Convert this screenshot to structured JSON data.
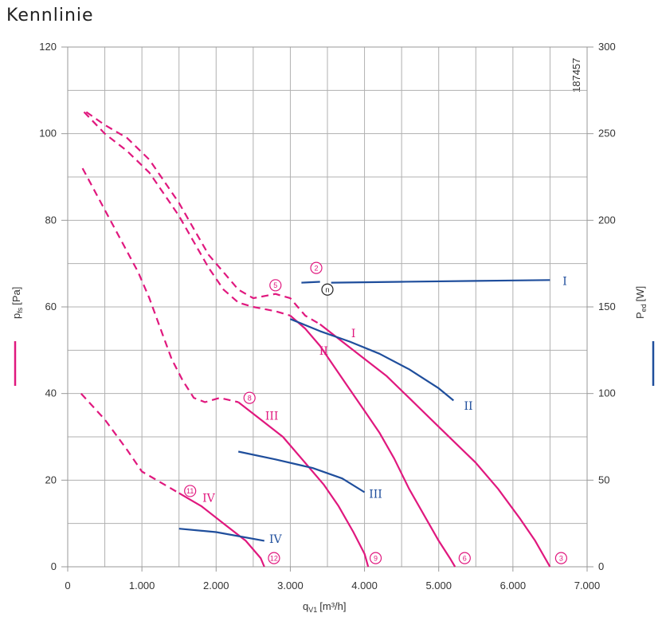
{
  "chart_data": {
    "type": "line",
    "title": "Kennlinie",
    "code": "187457",
    "x_axis": {
      "label_main": "q",
      "label_sub": "V1",
      "label_unit": "[m³/h]",
      "ticks": [
        "0",
        "1.000",
        "2.000",
        "3.000",
        "4.000",
        "5.000",
        "6.000",
        "7.000"
      ],
      "range": [
        0,
        7000
      ]
    },
    "y_left": {
      "label_main": "p",
      "label_sub": "fs",
      "label_unit": "[Pa]",
      "ticks": [
        "0",
        "20",
        "40",
        "60",
        "80",
        "100",
        "120"
      ],
      "range": [
        0,
        120
      ],
      "color": "#e0187e"
    },
    "y_right": {
      "label_main": "P",
      "label_sub": "ed",
      "label_unit": "[W]",
      "ticks": [
        "0",
        "50",
        "100",
        "150",
        "200",
        "250",
        "300"
      ],
      "range": [
        0,
        300
      ],
      "color": "#1f4e9c"
    },
    "grid": true,
    "colors": {
      "pressure": "#e0187e",
      "power": "#1f4e9c",
      "grid": "#b0b0b0"
    },
    "pressure_series": [
      {
        "name": "I",
        "dashed": [
          [
            250,
            105
          ],
          [
            500,
            102
          ],
          [
            800,
            99
          ],
          [
            1100,
            94
          ],
          [
            1300,
            89
          ],
          [
            1500,
            84
          ],
          [
            1700,
            78
          ],
          [
            1900,
            72
          ],
          [
            2100,
            68
          ],
          [
            2300,
            64
          ],
          [
            2500,
            62
          ],
          [
            2800,
            63
          ],
          [
            3000,
            62
          ],
          [
            3200,
            58
          ],
          [
            3400,
            56
          ]
        ],
        "solid": [
          [
            3400,
            56
          ],
          [
            3700,
            52
          ],
          [
            4000,
            48
          ],
          [
            4300,
            44
          ],
          [
            4600,
            39
          ],
          [
            4900,
            34
          ],
          [
            5200,
            29
          ],
          [
            5500,
            24
          ],
          [
            5800,
            18
          ],
          [
            6100,
            11
          ],
          [
            6300,
            6
          ],
          [
            6500,
            0
          ]
        ],
        "label": "I",
        "label_at": [
          3850,
          53
        ]
      },
      {
        "name": "II",
        "dashed": [
          [
            220,
            105
          ],
          [
            500,
            100
          ],
          [
            800,
            96
          ],
          [
            1100,
            91
          ],
          [
            1300,
            86
          ],
          [
            1500,
            81
          ],
          [
            1700,
            75
          ],
          [
            1900,
            69
          ],
          [
            2100,
            64
          ],
          [
            2300,
            61
          ],
          [
            2500,
            60
          ],
          [
            2800,
            59
          ],
          [
            3000,
            58
          ]
        ],
        "solid": [
          [
            3000,
            58
          ],
          [
            3200,
            55
          ],
          [
            3400,
            51
          ],
          [
            3600,
            46
          ],
          [
            3800,
            41
          ],
          [
            4000,
            36
          ],
          [
            4200,
            31
          ],
          [
            4400,
            25
          ],
          [
            4600,
            18
          ],
          [
            4800,
            12
          ],
          [
            5000,
            6
          ],
          [
            5150,
            2
          ],
          [
            5220,
            0
          ]
        ],
        "label": "II",
        "label_at": [
          3450,
          49
        ]
      },
      {
        "name": "III",
        "dashed": [
          [
            200,
            92
          ],
          [
            450,
            84
          ],
          [
            700,
            76
          ],
          [
            950,
            68
          ],
          [
            1100,
            62
          ],
          [
            1250,
            55
          ],
          [
            1400,
            48
          ],
          [
            1550,
            43
          ],
          [
            1700,
            39
          ],
          [
            1850,
            38
          ],
          [
            2050,
            39
          ],
          [
            2300,
            38
          ]
        ],
        "solid": [
          [
            2300,
            38
          ],
          [
            2600,
            34
          ],
          [
            2900,
            30
          ],
          [
            3200,
            24
          ],
          [
            3450,
            19
          ],
          [
            3650,
            14
          ],
          [
            3850,
            8
          ],
          [
            4000,
            3
          ],
          [
            4050,
            0
          ]
        ],
        "label": "III",
        "label_at": [
          2750,
          34
        ]
      },
      {
        "name": "IV",
        "dashed": [
          [
            180,
            40
          ],
          [
            500,
            34
          ],
          [
            800,
            27
          ],
          [
            1000,
            22
          ],
          [
            1200,
            20
          ],
          [
            1500,
            17
          ]
        ],
        "solid": [
          [
            1500,
            17
          ],
          [
            1800,
            14
          ],
          [
            2100,
            10
          ],
          [
            2400,
            6
          ],
          [
            2600,
            2
          ],
          [
            2650,
            0
          ]
        ],
        "label": "IV",
        "label_at": [
          1900,
          15
        ]
      }
    ],
    "power_series": [
      {
        "name": "I",
        "points": [
          [
            3150,
            164
          ],
          [
            3400,
            164.5
          ]
        ],
        "points2": [
          [
            3550,
            164
          ],
          [
            4500,
            164.5
          ],
          [
            5500,
            165
          ],
          [
            6500,
            165.5
          ]
        ],
        "label": "I",
        "label_at": [
          6700,
          165
        ]
      },
      {
        "name": "II",
        "points": [
          [
            3000,
            143
          ],
          [
            3400,
            136
          ],
          [
            3800,
            130
          ],
          [
            4200,
            123
          ],
          [
            4600,
            114
          ],
          [
            5000,
            103
          ],
          [
            5200,
            96
          ]
        ],
        "label": "II",
        "label_at": [
          5400,
          93
        ]
      },
      {
        "name": "III",
        "points": [
          [
            2300,
            66.5
          ],
          [
            2800,
            62
          ],
          [
            3300,
            57
          ],
          [
            3700,
            51
          ],
          [
            4000,
            43
          ]
        ],
        "label": "III",
        "label_at": [
          4150,
          42
        ]
      },
      {
        "name": "IV",
        "points": [
          [
            1500,
            22
          ],
          [
            2000,
            20
          ],
          [
            2650,
            15
          ]
        ],
        "label": "IV",
        "label_at": [
          2800,
          16
        ]
      }
    ],
    "markers": [
      {
        "text": "2",
        "at": [
          3350,
          69
        ],
        "color": "#e0187e"
      },
      {
        "text": "5",
        "at": [
          2800,
          65
        ],
        "color": "#e0187e"
      },
      {
        "text": "n",
        "at": [
          3500,
          64
        ],
        "color": "#222222"
      },
      {
        "text": "8",
        "at": [
          2450,
          39
        ],
        "color": "#e0187e"
      },
      {
        "text": "11",
        "at": [
          1650,
          17.5
        ],
        "color": "#e0187e"
      },
      {
        "text": "12",
        "at": [
          2780,
          2
        ],
        "color": "#e0187e"
      },
      {
        "text": "9",
        "at": [
          4150,
          2
        ],
        "color": "#e0187e"
      },
      {
        "text": "6",
        "at": [
          5350,
          2
        ],
        "color": "#e0187e"
      },
      {
        "text": "3",
        "at": [
          6650,
          2
        ],
        "color": "#e0187e"
      }
    ]
  }
}
